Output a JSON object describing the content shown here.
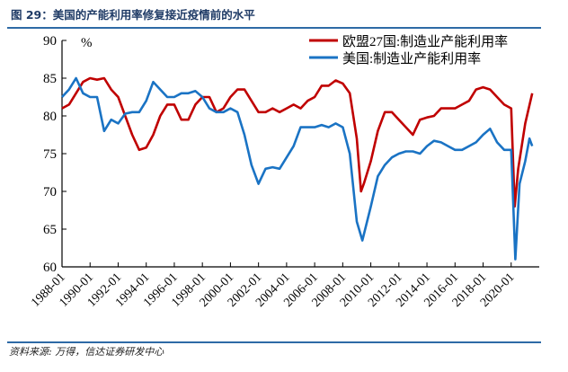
{
  "title": "图 29：美国的产能利用率修复接近疫情前的水平",
  "source": "资料来源: 万得，信达证券研发中心",
  "chart_data": {
    "type": "line",
    "title": "图 29：美国的产能利用率修复接近疫情前的水平",
    "ylabel": "%",
    "xlabel": "",
    "ylim": [
      60,
      90
    ],
    "yticks": [
      60,
      65,
      70,
      75,
      80,
      85,
      90
    ],
    "xlim": [
      1988,
      2022
    ],
    "xticks": [
      1988,
      1990,
      1992,
      1994,
      1996,
      1998,
      2000,
      2002,
      2004,
      2006,
      2008,
      2010,
      2012,
      2014,
      2016,
      2018,
      2020
    ],
    "xtick_labels": [
      "1988-01",
      "1990-01",
      "1992-01",
      "1994-01",
      "1996-01",
      "1998-01",
      "2000-01",
      "2002-01",
      "2004-01",
      "2006-01",
      "2008-01",
      "2010-01",
      "2012-01",
      "2014-01",
      "2016-01",
      "2018-01",
      "2020-01"
    ],
    "legend_position": "top-right",
    "grid": false,
    "series": [
      {
        "name": "欧盟27国:制造业产能利用率",
        "color": "#c00000",
        "x": [
          1988,
          1988.5,
          1989,
          1989.5,
          1990,
          1990.5,
          1991,
          1991.5,
          1992,
          1992.5,
          1993,
          1993.5,
          1994,
          1994.5,
          1995,
          1995.5,
          1996,
          1996.5,
          1997,
          1997.5,
          1998,
          1998.5,
          1999,
          1999.5,
          2000,
          2000.5,
          2001,
          2001.5,
          2002,
          2002.5,
          2003,
          2003.5,
          2004,
          2004.5,
          2005,
          2005.5,
          2006,
          2006.5,
          2007,
          2007.5,
          2008,
          2008.5,
          2009,
          2009.3,
          2009.5,
          2010,
          2010.5,
          2011,
          2011.5,
          2012,
          2012.5,
          2013,
          2013.5,
          2014,
          2014.5,
          2015,
          2015.5,
          2016,
          2016.5,
          2017,
          2017.5,
          2018,
          2018.5,
          2019,
          2019.5,
          2020,
          2020.25,
          2020.5,
          2021,
          2021.5
        ],
        "y": [
          81,
          81.5,
          83,
          84.5,
          85,
          84.8,
          85,
          83.5,
          82.5,
          80,
          77.5,
          75.5,
          75.8,
          77.5,
          80,
          81.5,
          81.5,
          79.5,
          79.5,
          81.5,
          82.5,
          82.5,
          80.5,
          81,
          82.5,
          83.5,
          83.5,
          82,
          80.5,
          80.5,
          81,
          80.5,
          81,
          81.5,
          81,
          82,
          82.5,
          84,
          84,
          84.7,
          84.3,
          83,
          77,
          70,
          71,
          74,
          78,
          80.5,
          80.5,
          79.5,
          78.5,
          77.5,
          79.5,
          79.8,
          80,
          81,
          81,
          81,
          81.5,
          82,
          83.5,
          83.8,
          83.5,
          82.5,
          81.5,
          81,
          68,
          73,
          79,
          83
        ]
      },
      {
        "name": "美国:制造业产能利用率",
        "color": "#1a73c4",
        "x": [
          1988,
          1988.5,
          1989,
          1989.5,
          1990,
          1990.5,
          1991,
          1991.5,
          1992,
          1992.5,
          1993,
          1993.5,
          1994,
          1994.5,
          1995,
          1995.5,
          1996,
          1996.5,
          1997,
          1997.5,
          1998,
          1998.5,
          1999,
          1999.5,
          2000,
          2000.5,
          2001,
          2001.5,
          2002,
          2002.5,
          2003,
          2003.5,
          2004,
          2004.5,
          2005,
          2005.5,
          2006,
          2006.5,
          2007,
          2007.5,
          2008,
          2008.5,
          2009,
          2009.4,
          2010,
          2010.5,
          2011,
          2011.5,
          2012,
          2012.5,
          2013,
          2013.5,
          2014,
          2014.5,
          2015,
          2015.5,
          2016,
          2016.5,
          2017,
          2017.5,
          2018,
          2018.5,
          2019,
          2019.5,
          2020,
          2020.3,
          2020.6,
          2021,
          2021.3,
          2021.5
        ],
        "y": [
          82.5,
          83.5,
          85,
          83,
          82.5,
          82.5,
          78,
          79.5,
          79,
          80.3,
          80.5,
          80.5,
          82,
          84.5,
          83.5,
          82.5,
          82.5,
          83,
          83,
          83.3,
          82.5,
          81,
          80.5,
          80.5,
          81,
          80.5,
          77.5,
          73.5,
          71,
          73,
          73.2,
          73,
          74.5,
          76,
          78.5,
          78.5,
          78.5,
          78.8,
          78.5,
          79,
          78.5,
          75,
          66,
          63.5,
          68,
          72,
          73.5,
          74.5,
          75,
          75.3,
          75.3,
          75,
          76,
          76.7,
          76.5,
          76,
          75.5,
          75.5,
          76,
          76.5,
          77.5,
          78.3,
          76.5,
          75.5,
          75.5,
          61,
          71,
          74,
          77,
          76
        ]
      }
    ]
  }
}
